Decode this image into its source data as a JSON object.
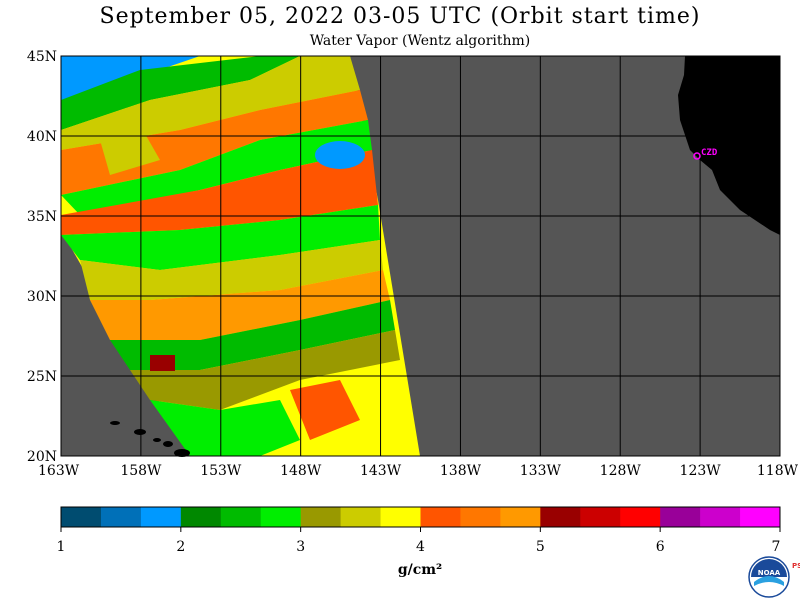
{
  "header": {
    "title": "September 05, 2022  03-05 UTC  (Orbit start time)",
    "subtitle": "Water Vapor (Wentz algorithm)"
  },
  "map": {
    "lat_labels": [
      "45N",
      "40N",
      "35N",
      "30N",
      "25N",
      "20N"
    ],
    "lat_values": [
      45,
      40,
      35,
      30,
      25,
      20
    ],
    "lon_labels": [
      "163W",
      "158W",
      "153W",
      "148W",
      "143W",
      "138W",
      "133W",
      "128W",
      "123W",
      "118W"
    ],
    "lon_values": [
      -163,
      -158,
      -153,
      -148,
      -143,
      -138,
      -133,
      -128,
      -123,
      -118
    ],
    "lat_range": [
      20,
      45
    ],
    "lon_range": [
      -163,
      -118
    ],
    "station_label": "CZD",
    "land_color": "#000000",
    "no_data_color": "#555555",
    "gridline_color": "#000000",
    "station_color": "#ff00ff"
  },
  "colorbar": {
    "tick_labels": [
      "1",
      "2",
      "3",
      "4",
      "5",
      "6",
      "7"
    ],
    "unit": "g/cm²",
    "range": [
      1,
      7
    ],
    "colors": [
      "#004c70",
      "#0070b8",
      "#0099ff",
      "#008800",
      "#00bb00",
      "#00ee00",
      "#999900",
      "#cccc00",
      "#ffff00",
      "#ff5500",
      "#ff7700",
      "#ff9900",
      "#990000",
      "#cc0000",
      "#ff0000",
      "#990099",
      "#cc00cc",
      "#ff00ff"
    ]
  },
  "logo": {
    "text": "NOAA",
    "side_text": "PSL"
  }
}
